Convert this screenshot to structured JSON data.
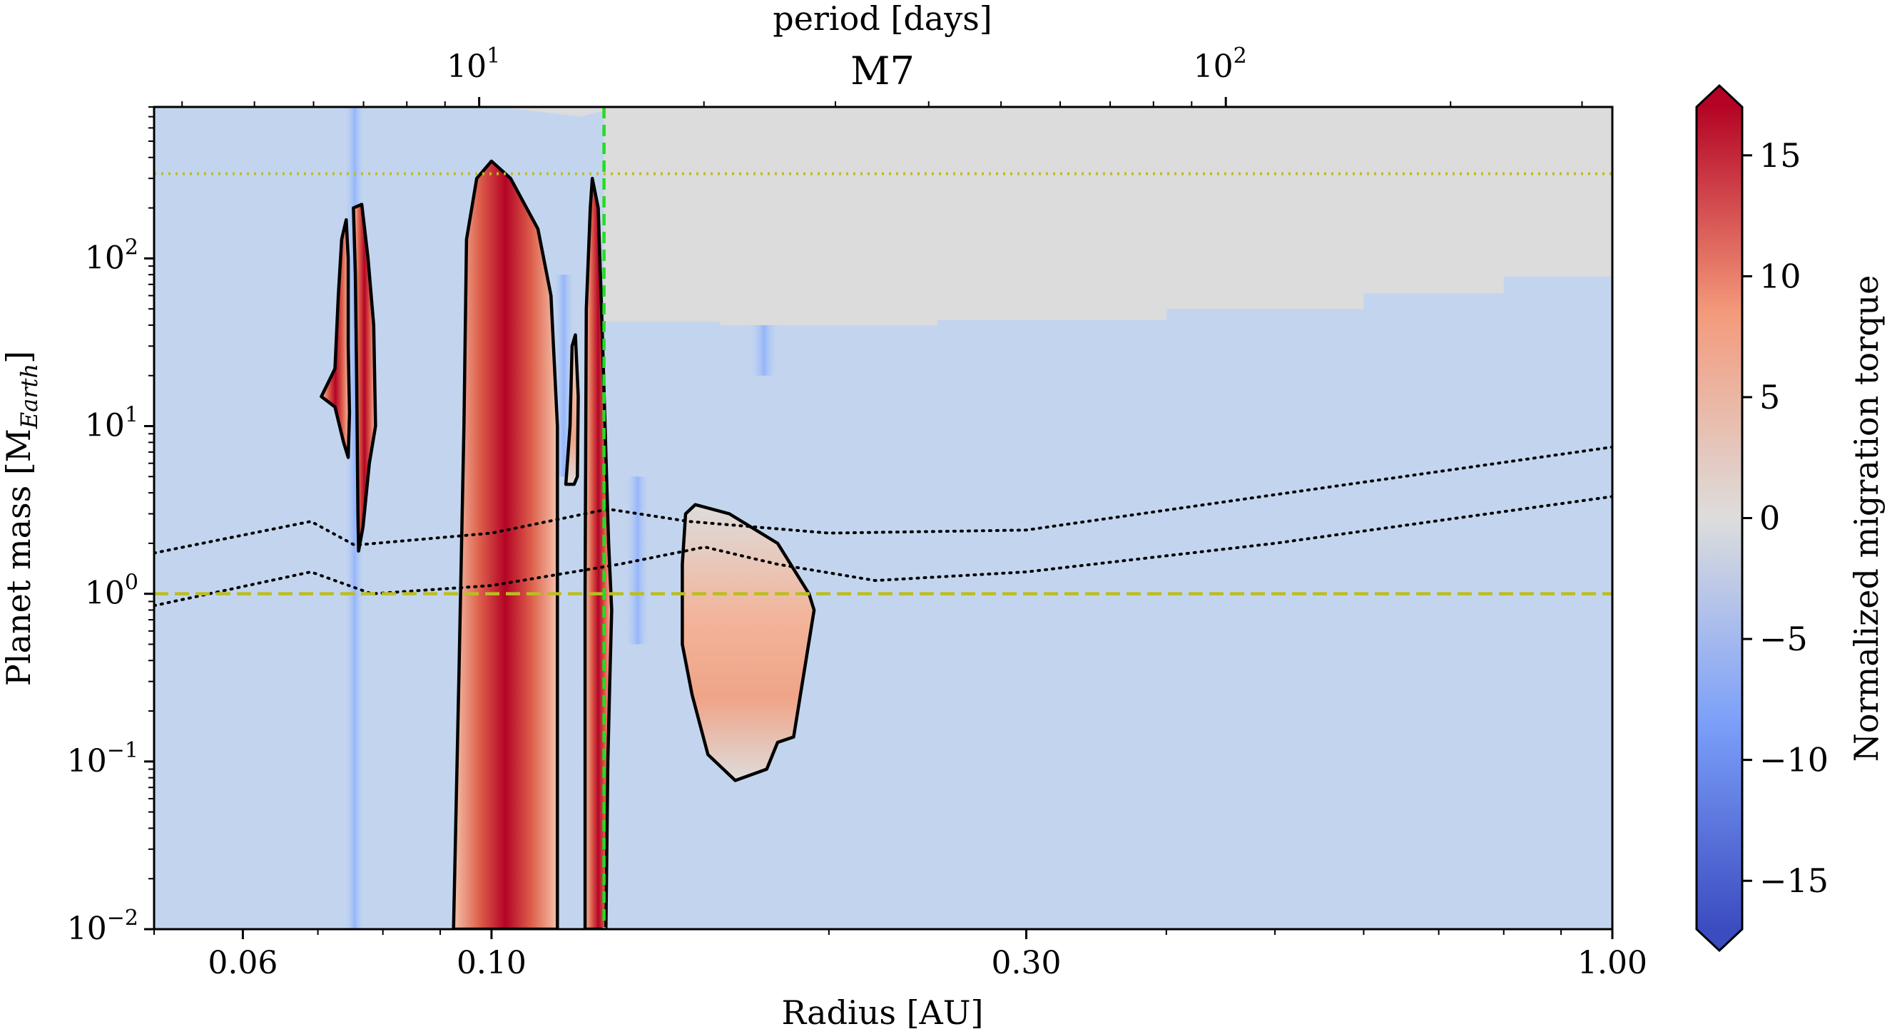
{
  "chart_data": {
    "type": "heatmap",
    "title": "M7",
    "xlabel": "Radius [AU]",
    "ylabel_main": "Planet mass [M",
    "ylabel_sub": "Earth",
    "ylabel_end": "]",
    "top_axis_label": "period [days]",
    "colorbar_label": "Normalized migration torque",
    "x_scale": "log",
    "y_scale": "log",
    "xlim": [
      0.05,
      1.0
    ],
    "ylim": [
      0.01,
      800
    ],
    "clim": [
      -17,
      17
    ],
    "x_ticks": [
      {
        "value": 0.06,
        "label": "0.06"
      },
      {
        "value": 0.1,
        "label": "0.10"
      },
      {
        "value": 0.3,
        "label": "0.30"
      },
      {
        "value": 1.0,
        "label": "1.00"
      }
    ],
    "y_ticks": [
      {
        "value": 0.01,
        "base": "10",
        "exp": "−2"
      },
      {
        "value": 0.1,
        "base": "10",
        "exp": "−1"
      },
      {
        "value": 1,
        "base": "10",
        "exp": "0"
      },
      {
        "value": 10,
        "base": "10",
        "exp": "1"
      },
      {
        "value": 100,
        "base": "10",
        "exp": "2"
      }
    ],
    "top_ticks": [
      {
        "value": 10,
        "base": "10",
        "exp": "1"
      },
      {
        "value": 100,
        "base": "10",
        "exp": "2"
      }
    ],
    "colorbar_ticks": [
      {
        "value": 15,
        "label": "15"
      },
      {
        "value": 10,
        "label": "10"
      },
      {
        "value": 5,
        "label": "5"
      },
      {
        "value": 0,
        "label": "0"
      },
      {
        "value": -5,
        "label": "−5"
      },
      {
        "value": -10,
        "label": "−10"
      },
      {
        "value": -15,
        "label": "−15"
      }
    ],
    "colors": {
      "background_field": "#c3d5ee",
      "no_data": "#dcdcdc",
      "positive": "#b40426",
      "negative": "#3b4cc0",
      "neutral": "#dddddd",
      "yellow_lines": "#bcbd22",
      "green_line": "#22dd22"
    },
    "lines": {
      "dashed_mass": 1.0,
      "dotted_mass": 320,
      "dashed_radius": 0.126
    },
    "no_data_boundary": [
      [
        0.126,
        42
      ],
      [
        0.16,
        40
      ],
      [
        0.25,
        43
      ],
      [
        0.4,
        50
      ],
      [
        0.6,
        62
      ],
      [
        0.8,
        78
      ],
      [
        1.0,
        95
      ]
    ],
    "gap_region_no_data": [
      [
        0.102,
        800
      ],
      [
        0.12,
        700
      ],
      [
        0.126,
        760
      ]
    ],
    "blue_streaks": [
      {
        "x": 0.0755,
        "min": 0.01,
        "max": 800,
        "strength": -4
      },
      {
        "x": 0.116,
        "min": 5,
        "max": 80,
        "strength": -5
      },
      {
        "x": 0.135,
        "min": 0.5,
        "max": 5,
        "strength": -6
      },
      {
        "x": 0.175,
        "min": 20,
        "max": 60,
        "strength": -8
      }
    ],
    "positive_regions": [
      {
        "name": "region-1",
        "color_peak": 13,
        "contour": [
          [
            0.0705,
            15
          ],
          [
            0.0725,
            22
          ],
          [
            0.073,
            60
          ],
          [
            0.0735,
            130
          ],
          [
            0.0742,
            170
          ],
          [
            0.0745,
            100
          ],
          [
            0.0745,
            30
          ],
          [
            0.0747,
            12
          ],
          [
            0.0745,
            6.5
          ],
          [
            0.0738,
            8
          ],
          [
            0.0725,
            13
          ]
        ]
      },
      {
        "name": "region-2",
        "color_peak": 14,
        "contour": [
          [
            0.0753,
            200
          ],
          [
            0.0766,
            210
          ],
          [
            0.0776,
            100
          ],
          [
            0.0785,
            40
          ],
          [
            0.0788,
            10
          ],
          [
            0.0778,
            6
          ],
          [
            0.0768,
            2.5
          ],
          [
            0.0761,
            1.8
          ],
          [
            0.076,
            3
          ],
          [
            0.0758,
            20
          ],
          [
            0.0756,
            80
          ]
        ]
      },
      {
        "name": "region-3",
        "color_peak": 16,
        "contour": [
          [
            0.0925,
            0.01
          ],
          [
            0.0935,
            0.3
          ],
          [
            0.0945,
            10
          ],
          [
            0.095,
            130
          ],
          [
            0.097,
            300
          ],
          [
            0.1,
            380
          ],
          [
            0.104,
            300
          ],
          [
            0.11,
            150
          ],
          [
            0.113,
            60
          ],
          [
            0.1145,
            10
          ],
          [
            0.1145,
            0.01
          ]
        ]
      },
      {
        "name": "region-4",
        "color_peak": 2,
        "contour": [
          [
            0.1165,
            4.5
          ],
          [
            0.1175,
            10
          ],
          [
            0.118,
            30
          ],
          [
            0.1188,
            35
          ],
          [
            0.1195,
            15
          ],
          [
            0.1193,
            5
          ],
          [
            0.1185,
            4.5
          ]
        ]
      },
      {
        "name": "region-5",
        "color_peak": 18,
        "contour": [
          [
            0.1212,
            0.01
          ],
          [
            0.1212,
            1
          ],
          [
            0.1215,
            50
          ],
          [
            0.1225,
            200
          ],
          [
            0.123,
            300
          ],
          [
            0.1245,
            200
          ],
          [
            0.1255,
            40
          ],
          [
            0.1268,
            4
          ],
          [
            0.1272,
            2
          ],
          [
            0.128,
            0.8
          ],
          [
            0.1275,
            0.3
          ],
          [
            0.127,
            0.1
          ],
          [
            0.1265,
            0.01
          ]
        ]
      },
      {
        "name": "region-6",
        "color_peak": 7,
        "contour": [
          [
            0.149,
            3
          ],
          [
            0.152,
            3.4
          ],
          [
            0.163,
            3
          ],
          [
            0.18,
            2
          ],
          [
            0.192,
            1.0
          ],
          [
            0.194,
            0.8
          ],
          [
            0.186,
            0.14
          ],
          [
            0.18,
            0.13
          ],
          [
            0.176,
            0.09
          ],
          [
            0.165,
            0.077
          ],
          [
            0.156,
            0.11
          ],
          [
            0.151,
            0.25
          ],
          [
            0.148,
            0.5
          ],
          [
            0.148,
            1.5
          ]
        ]
      }
    ],
    "dotted_curves": [
      {
        "name": "upper",
        "points": [
          [
            0.05,
            1.75
          ],
          [
            0.069,
            2.7
          ],
          [
            0.0755,
            1.95
          ],
          [
            0.1,
            2.3
          ],
          [
            0.127,
            3.2
          ],
          [
            0.15,
            2.7
          ],
          [
            0.2,
            2.3
          ],
          [
            0.3,
            2.4
          ],
          [
            0.5,
            3.9
          ],
          [
            1.0,
            7.5
          ]
        ]
      },
      {
        "name": "lower",
        "points": [
          [
            0.05,
            0.85
          ],
          [
            0.069,
            1.35
          ],
          [
            0.0782,
            1.0
          ],
          [
            0.1,
            1.12
          ],
          [
            0.13,
            1.5
          ],
          [
            0.155,
            1.9
          ],
          [
            0.18,
            1.5
          ],
          [
            0.22,
            1.2
          ],
          [
            0.3,
            1.35
          ],
          [
            0.5,
            2.0
          ],
          [
            1.0,
            3.8
          ]
        ]
      }
    ]
  }
}
